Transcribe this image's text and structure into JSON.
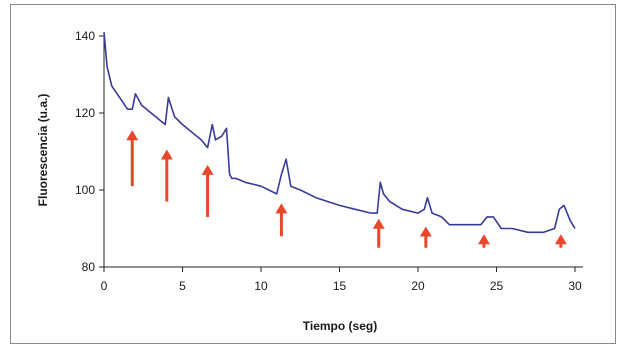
{
  "chart_data": {
    "type": "line",
    "title": "",
    "xlabel": "Tiempo (seg)",
    "ylabel": "Fluorescencia (u.a.)",
    "xlim": [
      0,
      30
    ],
    "ylim": [
      80,
      140
    ],
    "xticks": [
      "0",
      "5",
      "10",
      "15",
      "20",
      "25",
      "30"
    ],
    "yticks": [
      "80",
      "100",
      "120",
      "140"
    ],
    "grid": false,
    "legend": "none",
    "colors": {
      "line": "#3a3a9a",
      "arrow": "#e8472a",
      "axis": "#222222"
    },
    "series": [
      {
        "values_x": [
          0,
          0.2,
          0.5,
          1,
          1.5,
          1.8,
          2.0,
          2.4,
          3.0,
          3.6,
          3.9,
          4.1,
          4.5,
          5.0,
          5.6,
          6.2,
          6.6,
          6.9,
          7.1,
          7.5,
          7.8,
          8.0,
          8.15,
          8.4,
          9.0,
          10.0,
          11.0,
          11.3,
          11.6,
          11.9,
          12.5,
          13.5,
          15.0,
          16.0,
          17.0,
          17.4,
          17.6,
          17.8,
          18.2,
          19.0,
          20.0,
          20.4,
          20.6,
          20.9,
          21.5,
          22.0,
          23.0,
          24.0,
          24.4,
          24.8,
          25.3,
          26.0,
          27.0,
          28.0,
          28.7,
          29.0,
          29.3,
          29.7,
          30.0
        ],
        "values_y": [
          141,
          132,
          127,
          124,
          121,
          121,
          125,
          122,
          120,
          118,
          117,
          124,
          119,
          117,
          115,
          113,
          111,
          117,
          113,
          114,
          116,
          104,
          103,
          103,
          102,
          101,
          99,
          104,
          108,
          101,
          100,
          98,
          96,
          95,
          94,
          94,
          102,
          99,
          97,
          95,
          94,
          95,
          98,
          94,
          93,
          91,
          91,
          91,
          93,
          93,
          90,
          90,
          89,
          89,
          90,
          95,
          96,
          92,
          90
        ]
      }
    ],
    "arrows": [
      {
        "x": 1.8,
        "y_top": 115,
        "y_bottom": 101
      },
      {
        "x": 4.0,
        "y_top": 110,
        "y_bottom": 97
      },
      {
        "x": 6.6,
        "y_top": 106,
        "y_bottom": 93
      },
      {
        "x": 11.3,
        "y_top": 96,
        "y_bottom": 88
      },
      {
        "x": 17.5,
        "y_top": 92,
        "y_bottom": 85
      },
      {
        "x": 20.5,
        "y_top": 90,
        "y_bottom": 85
      },
      {
        "x": 24.2,
        "y_top": 88,
        "y_bottom": 85
      },
      {
        "x": 29.1,
        "y_top": 88,
        "y_bottom": 85
      }
    ]
  }
}
